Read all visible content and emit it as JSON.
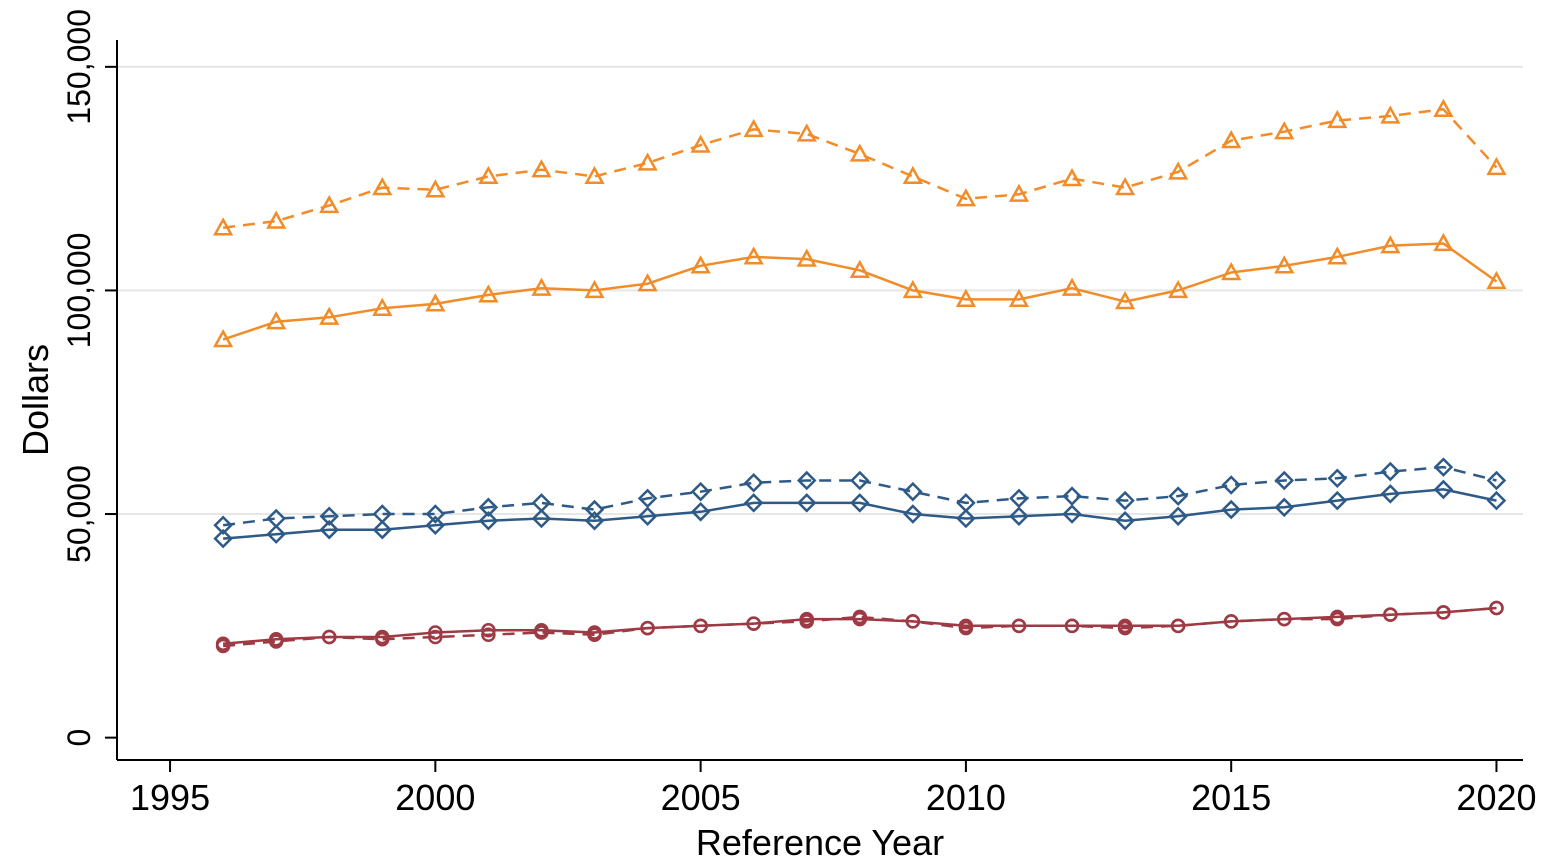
{
  "chart_data": {
    "type": "line",
    "title": "",
    "xlabel": "Reference Year",
    "ylabel": "Dollars",
    "xlim": [
      1994,
      2020.5
    ],
    "ylim": [
      -5000,
      156000
    ],
    "x_ticks": [
      1995,
      2000,
      2005,
      2010,
      2015,
      2020
    ],
    "x_tick_labels": [
      "1995",
      "2000",
      "2005",
      "2010",
      "2015",
      "2020"
    ],
    "y_ticks": [
      0,
      50000,
      100000,
      150000
    ],
    "y_tick_labels": [
      "0",
      "50,000",
      "100,000",
      "150,000"
    ],
    "grid": "horizontal",
    "legend": "none",
    "x": [
      1996,
      1997,
      1998,
      1999,
      2000,
      2001,
      2002,
      2003,
      2004,
      2005,
      2006,
      2007,
      2008,
      2009,
      2010,
      2011,
      2012,
      2013,
      2014,
      2015,
      2016,
      2017,
      2018,
      2019,
      2020
    ],
    "series": [
      {
        "color": "#F28C28",
        "line_style": "dashed",
        "marker": "triangle",
        "values": [
          114000,
          115500,
          119000,
          123000,
          122500,
          125500,
          127000,
          125500,
          128500,
          132500,
          136000,
          135000,
          130500,
          125500,
          120500,
          121500,
          125000,
          123000,
          126500,
          133500,
          135500,
          138000,
          139000,
          140500,
          127500
        ]
      },
      {
        "color": "#F28C28",
        "line_style": "solid",
        "marker": "triangle",
        "values": [
          89000,
          93000,
          94000,
          96000,
          97000,
          99000,
          100500,
          100000,
          101500,
          105500,
          107500,
          107000,
          104500,
          100000,
          98000,
          98000,
          100500,
          97500,
          100000,
          104000,
          105500,
          107500,
          110000,
          110500,
          102000
        ]
      },
      {
        "color": "#2E5A87",
        "line_style": "dashed",
        "marker": "diamond",
        "values": [
          47500,
          49000,
          49500,
          50000,
          50000,
          51500,
          52500,
          51000,
          53500,
          55000,
          57000,
          57500,
          57500,
          55000,
          52500,
          53500,
          54000,
          53000,
          54000,
          56500,
          57500,
          58000,
          59500,
          60500,
          57500
        ]
      },
      {
        "color": "#2E5A87",
        "line_style": "solid",
        "marker": "diamond",
        "values": [
          44500,
          45500,
          46500,
          46500,
          47500,
          48500,
          49000,
          48500,
          49500,
          50500,
          52500,
          52500,
          52500,
          50000,
          49000,
          49500,
          50000,
          48500,
          49500,
          51000,
          51500,
          53000,
          54500,
          55500,
          53000
        ]
      },
      {
        "color": "#9E3A44",
        "line_style": "dashed",
        "marker": "circle",
        "values": [
          20500,
          21500,
          22500,
          22000,
          22500,
          23000,
          23500,
          23000,
          24500,
          25000,
          25500,
          26000,
          27000,
          26000,
          24500,
          25000,
          25000,
          24500,
          25000,
          26000,
          26500,
          26500,
          27500,
          28000,
          29000
        ]
      },
      {
        "color": "#9E3A44",
        "line_style": "solid",
        "marker": "circle",
        "values": [
          21000,
          22000,
          22500,
          22500,
          23500,
          24000,
          24000,
          23500,
          24500,
          25000,
          25500,
          26500,
          26500,
          26000,
          25000,
          25000,
          25000,
          25000,
          25000,
          26000,
          26500,
          27000,
          27500,
          28000,
          29000
        ]
      }
    ]
  }
}
